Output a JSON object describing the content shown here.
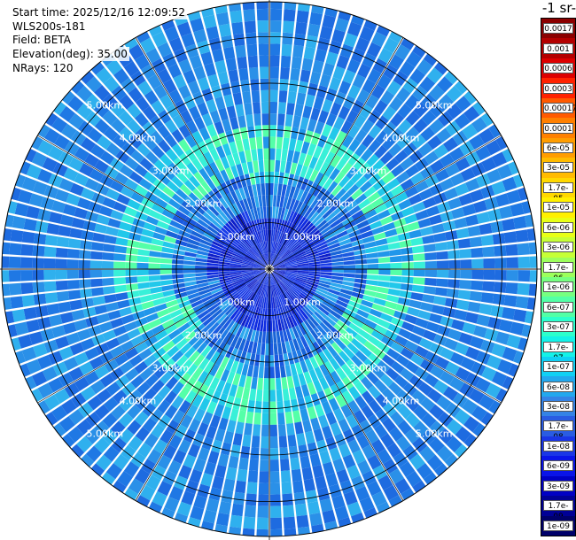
{
  "info": {
    "start_time": "Start time: 2025/12/16 12:09:52",
    "instrument": "WLS200s-181",
    "field": "Field: BETA",
    "elevation": "Elevation(deg): 35.00",
    "nrays": "NRays: 120"
  },
  "unit_title": "-1 sr-",
  "chart_data": {
    "type": "heatmap",
    "projection": "polar PPI",
    "nrays": 120,
    "elevation_deg": 35.0,
    "range_km_max": 5.75,
    "range_rings_km": [
      1.0,
      2.0,
      3.0,
      4.0,
      5.0
    ],
    "ring_labels": [
      "1.00km",
      "2.00km",
      "3.00km",
      "4.00km",
      "5.00km"
    ],
    "field": "BETA",
    "colorbar": {
      "labels": [
        "0.0017",
        "0.001",
        "0.0006",
        "0.0003",
        "0.00017",
        "0.0001",
        "6e-05",
        "3e-05",
        "1.7e-05",
        "1e-05",
        "6e-06",
        "3e-06",
        "1.7e-06",
        "1e-06",
        "6e-07",
        "3e-07",
        "1.7e-07",
        "1e-07",
        "6e-08",
        "3e-08",
        "1.7e-08",
        "1e-08",
        "6e-09",
        "3e-09",
        "1.7e-09",
        "1e-09"
      ],
      "colors": [
        "#8b0000",
        "#b30000",
        "#dd0000",
        "#ff2200",
        "#ff5a00",
        "#ff8000",
        "#ff9d00",
        "#ffbb00",
        "#ffd800",
        "#fff000",
        "#e8ff16",
        "#c6ff36",
        "#9cff5c",
        "#76ff80",
        "#52ffa6",
        "#2cffcc",
        "#14f2e8",
        "#10d0f4",
        "#22a8ee",
        "#3483e6",
        "#2a5ce2",
        "#1a36e6",
        "#0a14e8",
        "#0000c4",
        "#000096",
        "#00006a"
      ]
    },
    "field_classes": [
      {
        "name": "inner",
        "max_km": 1.3,
        "colors": [
          "#0f2ce0",
          "#0e1fc8",
          "#1a3ee8",
          "#1638d8"
        ]
      },
      {
        "name": "mid",
        "max_km": 2.1,
        "colors": [
          "#1f7ae6",
          "#1a5ae0",
          "#2da8ee",
          "#1864d8"
        ]
      },
      {
        "name": "band",
        "max_km": 3.3,
        "colors": [
          "#38f0d8",
          "#22c8ea",
          "#54ffa8",
          "#2096ea"
        ]
      },
      {
        "name": "outer",
        "max_km": 5.75,
        "colors": [
          "#2a90e8",
          "#1f78e4",
          "#2fb0ee",
          "#1e6be0"
        ]
      }
    ]
  }
}
